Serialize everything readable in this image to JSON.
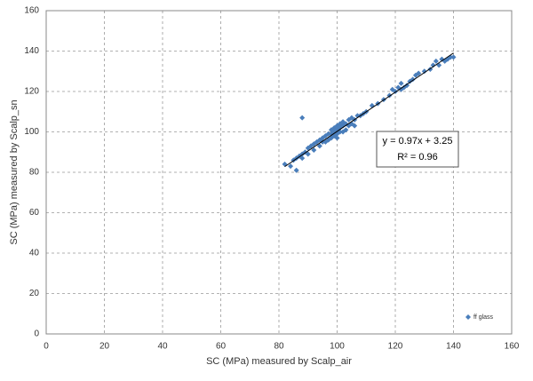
{
  "chart_data": {
    "type": "scatter",
    "xlabel": "SC (MPa) measured by Scalp_air",
    "ylabel": "SC (MPa) measured by Scalp_sn",
    "xlim": [
      0,
      160
    ],
    "xticks": [
      0,
      20,
      40,
      60,
      80,
      100,
      120,
      140,
      160
    ],
    "ylim": [
      0,
      160
    ],
    "yticks": [
      0,
      20,
      40,
      60,
      80,
      100,
      120,
      140,
      160
    ],
    "grid": true,
    "legend": "lower right",
    "annotations": [
      "y = 0.97x + 3.25",
      "R² = 0.96"
    ],
    "trendline": {
      "x": [
        82,
        140
      ],
      "y": [
        82.8,
        139.05
      ],
      "color": "#000000"
    },
    "series": [
      {
        "name": "ff glass",
        "color": "#4a7ebb",
        "x": [
          82,
          84,
          85,
          86,
          86,
          87,
          88,
          88,
          89,
          90,
          90,
          91,
          92,
          92,
          93,
          94,
          94,
          95,
          95,
          96,
          96,
          97,
          97,
          98,
          98,
          98,
          99,
          99,
          99,
          100,
          100,
          100,
          100,
          101,
          101,
          101,
          102,
          102,
          102,
          103,
          103,
          104,
          104,
          105,
          105,
          106,
          106,
          107,
          108,
          109,
          110,
          112,
          114,
          116,
          118,
          119,
          120,
          121,
          122,
          122,
          123,
          124,
          125,
          126,
          127,
          128,
          130,
          132,
          133,
          134,
          135,
          136,
          137,
          138,
          139,
          140,
          88
        ],
        "values": [
          84,
          83,
          86,
          81,
          87,
          88,
          89,
          87,
          90,
          92,
          89,
          93,
          94,
          91,
          95,
          96,
          93,
          97,
          95,
          98,
          95,
          99,
          96,
          101,
          97,
          99,
          102,
          98,
          100,
          103,
          101,
          99,
          97,
          104,
          102,
          100,
          105,
          103,
          100,
          104,
          101,
          106,
          103,
          107,
          104,
          106,
          103,
          108,
          108,
          109,
          110,
          113,
          114,
          116,
          118,
          121,
          120,
          122,
          121,
          124,
          122,
          123,
          125,
          126,
          128,
          129,
          130,
          131,
          133,
          135,
          133,
          136,
          135,
          136,
          137,
          137,
          107
        ]
      }
    ]
  }
}
